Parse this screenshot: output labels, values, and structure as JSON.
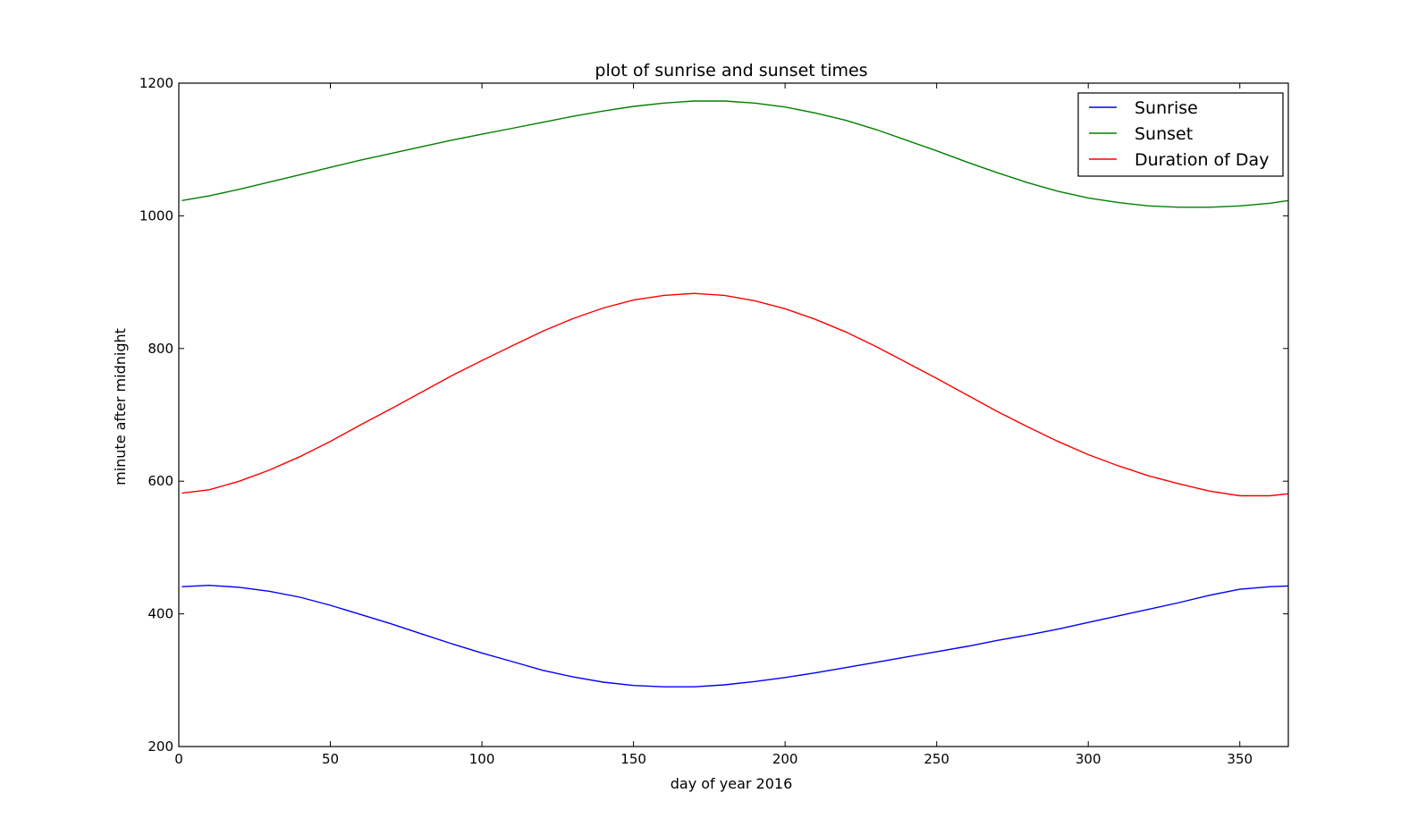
{
  "chart_data": {
    "type": "line",
    "title": "plot of sunrise and sunset times",
    "xlabel": "day of year 2016",
    "ylabel": "minute after midnight",
    "xlim": [
      0,
      366
    ],
    "ylim": [
      200,
      1200
    ],
    "xticks": [
      0,
      50,
      100,
      150,
      200,
      250,
      300,
      350
    ],
    "yticks": [
      200,
      400,
      600,
      800,
      1000,
      1200
    ],
    "grid": false,
    "legend_position": "top-right",
    "series": [
      {
        "name": "Sunrise",
        "color": "#0000ff",
        "x": [
          1,
          10,
          20,
          30,
          40,
          50,
          60,
          70,
          80,
          90,
          100,
          110,
          120,
          130,
          140,
          150,
          160,
          170,
          180,
          190,
          200,
          210,
          220,
          230,
          240,
          250,
          260,
          270,
          280,
          290,
          300,
          310,
          320,
          330,
          340,
          350,
          360,
          366
        ],
        "values": [
          441,
          443,
          440,
          434,
          425,
          413,
          399,
          385,
          370,
          355,
          341,
          328,
          315,
          305,
          297,
          292,
          290,
          290,
          293,
          298,
          304,
          311,
          319,
          327,
          335,
          343,
          351,
          360,
          368,
          377,
          387,
          397,
          407,
          417,
          428,
          437,
          441,
          442
        ]
      },
      {
        "name": "Sunset",
        "color": "#008000",
        "x": [
          1,
          10,
          20,
          30,
          40,
          50,
          60,
          70,
          80,
          90,
          100,
          110,
          120,
          130,
          140,
          150,
          160,
          170,
          180,
          190,
          200,
          210,
          220,
          230,
          240,
          250,
          260,
          270,
          280,
          290,
          300,
          310,
          320,
          330,
          340,
          350,
          360,
          366
        ],
        "values": [
          1023,
          1030,
          1040,
          1051,
          1062,
          1073,
          1084,
          1094,
          1104,
          1114,
          1123,
          1132,
          1141,
          1150,
          1158,
          1165,
          1170,
          1173,
          1173,
          1170,
          1164,
          1155,
          1144,
          1130,
          1114,
          1098,
          1081,
          1065,
          1050,
          1037,
          1027,
          1020,
          1015,
          1013,
          1013,
          1015,
          1019,
          1023
        ]
      },
      {
        "name": "Duration of Day",
        "color": "#ff0000",
        "x": [
          1,
          10,
          20,
          30,
          40,
          50,
          60,
          70,
          80,
          90,
          100,
          110,
          120,
          130,
          140,
          150,
          160,
          170,
          180,
          190,
          200,
          210,
          220,
          230,
          240,
          250,
          260,
          270,
          280,
          290,
          300,
          310,
          320,
          330,
          340,
          350,
          360,
          366
        ],
        "values": [
          582,
          587,
          600,
          617,
          637,
          660,
          685,
          709,
          734,
          759,
          782,
          804,
          826,
          845,
          861,
          873,
          880,
          883,
          880,
          872,
          860,
          844,
          825,
          803,
          779,
          755,
          730,
          705,
          682,
          660,
          640,
          623,
          608,
          596,
          585,
          578,
          578,
          581
        ]
      }
    ]
  }
}
